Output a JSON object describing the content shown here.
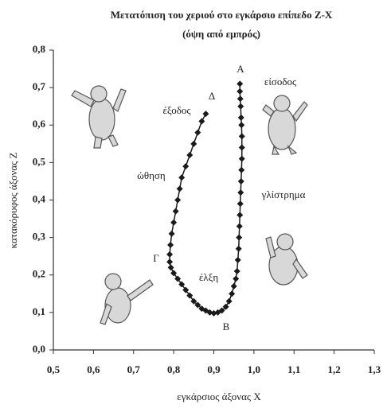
{
  "chart_data": {
    "type": "scatter",
    "title": "Μετατόπιση του χεριού στο εγκάρσιο επίπεδο Z-X",
    "subtitle": "(όψη από εμπρός)",
    "x_label": "εγκάρσιος άξονας X",
    "y_label": "κατακόρυφος άξονας Z",
    "x": [
      0.965,
      0.965,
      0.966,
      0.967,
      0.968,
      0.969,
      0.97,
      0.97,
      0.97,
      0.969,
      0.968,
      0.967,
      0.966,
      0.965,
      0.964,
      0.963,
      0.962,
      0.96,
      0.958,
      0.955,
      0.95,
      0.945,
      0.938,
      0.93,
      0.92,
      0.91,
      0.9,
      0.89,
      0.88,
      0.87,
      0.86,
      0.85,
      0.84,
      0.83,
      0.82,
      0.81,
      0.8,
      0.793,
      0.79,
      0.79,
      0.792,
      0.795,
      0.8,
      0.805,
      0.81,
      0.815,
      0.82,
      0.83,
      0.84,
      0.85,
      0.86,
      0.87,
      0.88
    ],
    "series": [
      {
        "color": "#1a1a1a",
        "values": [
          0.71,
          0.69,
          0.67,
          0.65,
          0.62,
          0.6,
          0.57,
          0.54,
          0.51,
          0.48,
          0.45,
          0.42,
          0.39,
          0.36,
          0.33,
          0.3,
          0.27,
          0.24,
          0.21,
          0.19,
          0.17,
          0.15,
          0.13,
          0.115,
          0.105,
          0.1,
          0.098,
          0.1,
          0.105,
          0.11,
          0.12,
          0.13,
          0.145,
          0.16,
          0.175,
          0.19,
          0.205,
          0.22,
          0.235,
          0.255,
          0.28,
          0.31,
          0.34,
          0.37,
          0.4,
          0.43,
          0.46,
          0.49,
          0.52,
          0.55,
          0.58,
          0.61,
          0.63
        ]
      }
    ],
    "xlim": [
      0.5,
      1.3
    ],
    "xticks": [
      {
        "value": 0.5,
        "label": "0,5"
      },
      {
        "value": 0.6,
        "label": "0,6"
      },
      {
        "value": 0.7,
        "label": "0,7"
      },
      {
        "value": 0.8,
        "label": "0,8"
      },
      {
        "value": 0.9,
        "label": "0,9"
      },
      {
        "value": 1,
        "label": "1,0"
      },
      {
        "value": 1.1,
        "label": "1,1"
      },
      {
        "value": 1.2,
        "label": "1,2"
      },
      {
        "value": 1.3,
        "label": "1,3"
      }
    ],
    "ylim": [
      0,
      0.8
    ],
    "yticks": [
      {
        "value": 0,
        "label": "0,0"
      },
      {
        "value": 0.1,
        "label": "0,1"
      },
      {
        "value": 0.2,
        "label": "0,2"
      },
      {
        "value": 0.3,
        "label": "0,3"
      },
      {
        "value": 0.4,
        "label": "0,4"
      },
      {
        "value": 0.5,
        "label": "0,5"
      },
      {
        "value": 0.6,
        "label": "0,6"
      },
      {
        "value": 0.7,
        "label": "0,7"
      },
      {
        "value": 0.8,
        "label": "0,8"
      }
    ],
    "grid": false,
    "annotations": [
      "A",
      "είσοδος",
      "Δ",
      "έξοδος",
      "ώθηση",
      "γλίστρημα",
      "Γ",
      "έλξη",
      "B"
    ]
  }
}
